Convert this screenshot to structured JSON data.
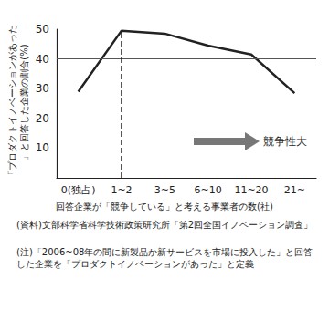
{
  "chart_data": {
    "type": "line",
    "y_label": "「プロダクトイノベーションがあった」と回答した企業の割合(%)",
    "x_label": "回答企業が「競争している」と考える事業者の数(社)",
    "categories": [
      "0(独占)",
      "1~2",
      "3~5",
      "6~10",
      "11~20",
      "21~"
    ],
    "values": [
      29,
      49.5,
      48.5,
      44.5,
      41.5,
      28.5
    ],
    "color": "#222222",
    "ylim": [
      0,
      50
    ],
    "yticks": [
      10,
      20,
      30,
      40,
      50
    ],
    "grid": false,
    "hline": 40,
    "vline": "1~2",
    "annotations": [
      "競争性大"
    ],
    "source": "(資料)文部科学省科学技術政策研究所「第2回全国イノベーション調査」",
    "note": "(注)「2006~08年の間に新製品か新サービスを市場に投入した」と回答した企業を「プロダクトイノベーションがあった」と定義"
  }
}
